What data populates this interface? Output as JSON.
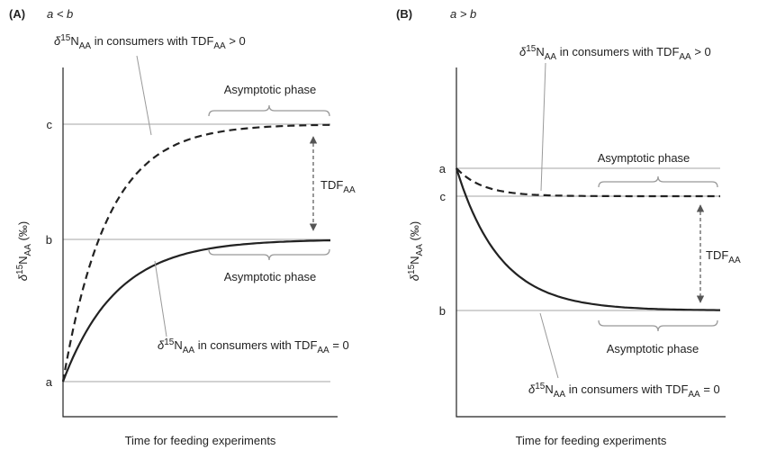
{
  "panels": [
    {
      "tag": "(A)",
      "condition": "a < b",
      "y_axis_label": {
        "delta": "δ",
        "sup": "15",
        "n": "N",
        "sub": "AA",
        "unit": " (‰)"
      },
      "x_axis_label": "Time for feeding experiments",
      "levels": [
        "c",
        "b",
        "a"
      ],
      "upper_note": {
        "delta": "δ",
        "sup": "15",
        "n": "N",
        "sub": "AA",
        "mid": " in consumers with TDF",
        "sub2": "AA",
        "post": " > 0"
      },
      "lower_note": {
        "delta": "δ",
        "sup": "15",
        "n": "N",
        "sub": "AA",
        "mid": " in consumers with TDF",
        "sub2": "AA",
        "post": " = 0"
      },
      "upper_phase": "Asymptotic phase",
      "lower_phase": "Asymptotic phase",
      "tdf": {
        "text": "TDF",
        "sub": "AA"
      }
    },
    {
      "tag": "(B)",
      "condition": "a > b",
      "y_axis_label": {
        "delta": "δ",
        "sup": "15",
        "n": "N",
        "sub": "AA",
        "unit": " (‰)"
      },
      "x_axis_label": "Time for feeding experiments",
      "levels": [
        "a",
        "c",
        "b"
      ],
      "upper_note": {
        "delta": "δ",
        "sup": "15",
        "n": "N",
        "sub": "AA",
        "mid": " in consumers with TDF",
        "sub2": "AA",
        "post": " > 0"
      },
      "lower_note": {
        "delta": "δ",
        "sup": "15",
        "n": "N",
        "sub": "AA",
        "mid": " in consumers with TDF",
        "sub2": "AA",
        "post": " = 0"
      },
      "upper_phase": "Asymptotic phase",
      "lower_phase": "Asymptotic phase",
      "tdf": {
        "text": "TDF",
        "sub": "AA"
      }
    }
  ]
}
